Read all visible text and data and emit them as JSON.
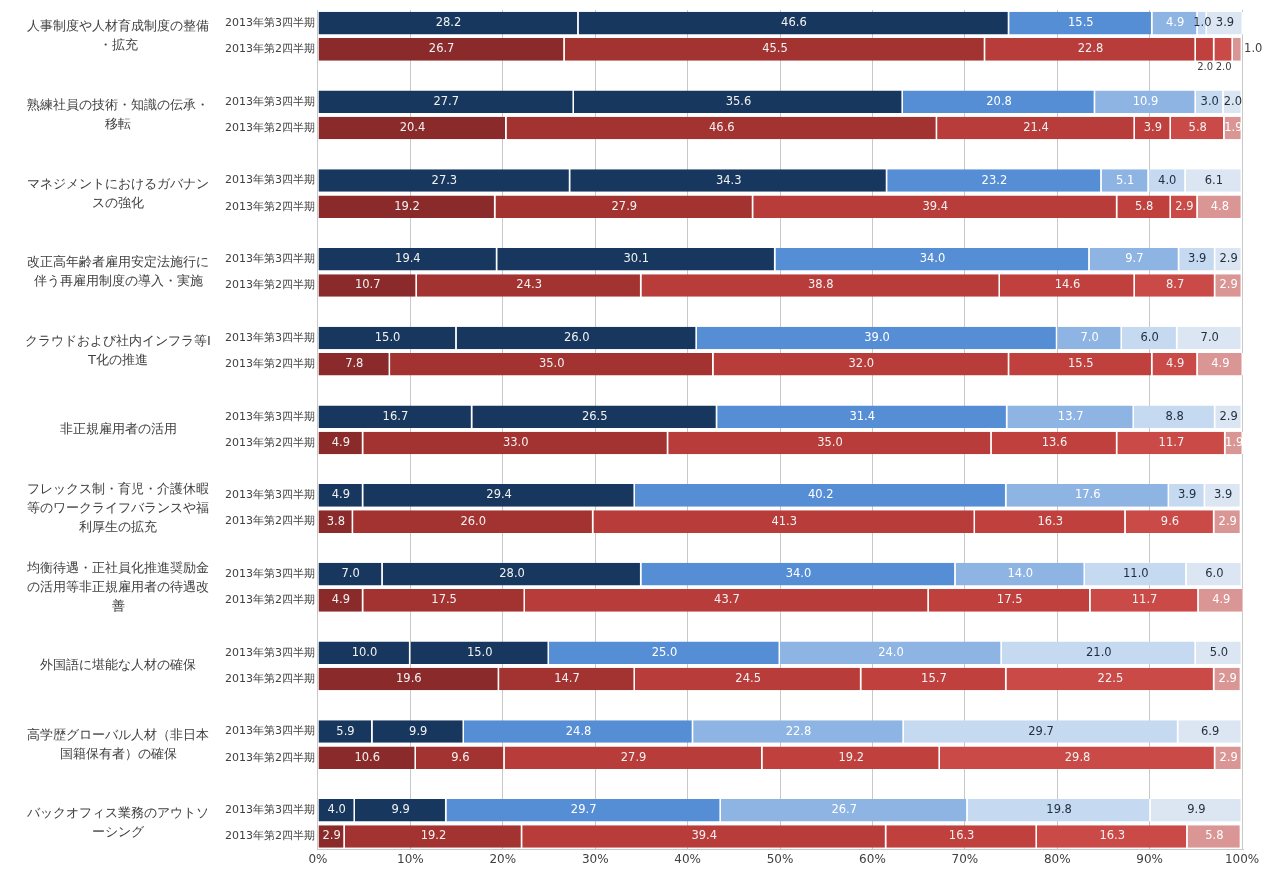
{
  "chart_data": {
    "type": "bar",
    "orientation": "horizontal",
    "stacked": true,
    "grid": "x",
    "legend": false,
    "categories": [
      "2013年第3四半期",
      "2013年第2四半期",
      null,
      "2013年第3四半期",
      "2013年第2四半期",
      null,
      "2013年第3四半期",
      "2013年第2四半期",
      null,
      "2013年第3四半期",
      "2013年第2四半期",
      null,
      "2013年第3四半期",
      "2013年第2四半期",
      null,
      "2013年第3四半期",
      "2013年第2四半期",
      null,
      "2013年第3四半期",
      "2013年第2四半期",
      null,
      "2013年第3四半期",
      "2013年第2四半期",
      null,
      "2013年第3四半期",
      "2013年第2四半期",
      null,
      "2013年第3四半期",
      "2013年第2四半期",
      null,
      "2013年第3四半期",
      "2013年第2四半期"
    ],
    "xlim": [
      0,
      100.1
    ],
    "xticks": [
      {
        "value": 0,
        "label": "0%"
      },
      {
        "value": 10,
        "label": "10%"
      },
      {
        "value": 20,
        "label": "20%"
      },
      {
        "value": 30,
        "label": "30%"
      },
      {
        "value": 40,
        "label": "40%"
      },
      {
        "value": 50,
        "label": "50%"
      },
      {
        "value": 60,
        "label": "60%"
      },
      {
        "value": 70,
        "label": "70%"
      },
      {
        "value": 80,
        "label": "80%"
      },
      {
        "value": 90,
        "label": "90%"
      },
      {
        "value": 100,
        "label": "100%"
      }
    ],
    "annotations": [
      "人事制度や人材育成制度の整備・拡充",
      "熟練社員の技術・知識の伝承・移転",
      "マネジメントにおけるガバナンスの強化",
      "改正高年齢者雇用安定法施行に伴う再雇用制度の導入・実施",
      "クラウドおよび社内インフラ等IT化の推進",
      "非正規雇用者の活用",
      "フレックス制・育児・介護休暇等のワークライフバランスや福利厚生の拡充",
      "均衡待遇・正社員化推進奨励金の活用等非正規雇用者の待遇改善",
      "外国語に堪能な人材の確保",
      "高学歴グローバル人材（非日本国籍保有者）の確保",
      "バックオフィス業務のアウトソーシング"
    ],
    "series": [
      {
        "colors": [
          "#17375e",
          "#8b2a2a",
          null,
          "#17375e",
          "#8b2a2a",
          null,
          "#17375e",
          "#8b2a2a",
          null,
          "#17375e",
          "#8b2a2a",
          null,
          "#17375e",
          "#8b2a2a",
          null,
          "#17375e",
          "#8b2a2a",
          null,
          "#17375e",
          "#8b2a2a",
          null,
          "#17375e",
          "#8b2a2a",
          null,
          "#17375e",
          "#8b2a2a",
          null,
          "#17375e",
          "#8b2a2a",
          null,
          "#17375e",
          "#8b2a2a"
        ],
        "values": [
          28.2,
          26.7,
          null,
          27.7,
          20.4,
          null,
          27.3,
          19.2,
          null,
          19.4,
          10.7,
          null,
          15.0,
          7.8,
          null,
          16.7,
          4.9,
          null,
          4.9,
          3.8,
          null,
          7.0,
          4.9,
          null,
          10.0,
          19.6,
          null,
          5.9,
          10.6,
          null,
          4.0,
          2.9
        ],
        "value_labels": [
          "28.2",
          "26.7",
          null,
          "27.7",
          "20.4",
          null,
          "27.3",
          "19.2",
          null,
          "19.4",
          "10.7",
          null,
          "15.0",
          "7.8",
          null,
          "16.7",
          "4.9",
          null,
          "4.9",
          "3.8",
          null,
          "7.0",
          "4.9",
          null,
          "10.0",
          "19.6",
          null,
          "5.9",
          "10.6",
          null,
          "4.0",
          "2.9"
        ]
      },
      {
        "colors": [
          "#17375e",
          "#a33330",
          null,
          "#17375e",
          "#a33330",
          null,
          "#17375e",
          "#a33330",
          null,
          "#17375e",
          "#a33330",
          null,
          "#17375e",
          "#a33330",
          null,
          "#17375e",
          "#a33330",
          null,
          "#17375e",
          "#a33330",
          null,
          "#17375e",
          "#a33330",
          null,
          "#17375e",
          "#a33330",
          null,
          "#17375e",
          "#a33330",
          null,
          "#17375e",
          "#a33330"
        ],
        "values": [
          46.6,
          45.5,
          null,
          35.6,
          46.6,
          null,
          34.3,
          27.9,
          null,
          30.1,
          24.3,
          null,
          26.0,
          35.0,
          null,
          26.5,
          33.0,
          null,
          29.4,
          26.0,
          null,
          28.0,
          17.5,
          null,
          15.0,
          14.7,
          null,
          9.9,
          9.6,
          null,
          9.9,
          19.2
        ],
        "value_labels": [
          "46.6",
          "45.5",
          null,
          "35.6",
          "46.6",
          null,
          "34.3",
          "27.9",
          null,
          "30.1",
          "24.3",
          null,
          "26.0",
          "35.0",
          null,
          "26.5",
          "33.0",
          null,
          "29.4",
          "26.0",
          null,
          "28.0",
          "17.5",
          null,
          "15.0",
          "14.7",
          null,
          "9.9",
          "9.6",
          null,
          "9.9",
          "19.2"
        ]
      },
      {
        "colors": [
          "#558ed5",
          "#b83c3a",
          null,
          "#558ed5",
          "#b83c3a",
          null,
          "#558ed5",
          "#b83c3a",
          null,
          "#558ed5",
          "#b83c3a",
          null,
          "#558ed5",
          "#b83c3a",
          null,
          "#558ed5",
          "#b83c3a",
          null,
          "#558ed5",
          "#b83c3a",
          null,
          "#558ed5",
          "#b83c3a",
          null,
          "#558ed5",
          "#b83c3a",
          null,
          "#558ed5",
          "#b83c3a",
          null,
          "#558ed5",
          "#b83c3a"
        ],
        "values": [
          15.5,
          22.8,
          null,
          20.8,
          21.4,
          null,
          23.2,
          39.4,
          null,
          34.0,
          38.8,
          null,
          39.0,
          32.0,
          null,
          31.4,
          35.0,
          null,
          40.2,
          41.3,
          null,
          34.0,
          43.7,
          null,
          25.0,
          24.5,
          null,
          24.8,
          27.9,
          null,
          29.7,
          39.4
        ],
        "value_labels": [
          "15.5",
          "22.8",
          null,
          "20.8",
          "21.4",
          null,
          "23.2",
          "39.4",
          null,
          "34.0",
          "38.8",
          null,
          "39.0",
          "32.0",
          null,
          "31.4",
          "35.0",
          null,
          "40.2",
          "41.3",
          null,
          "34.0",
          "43.7",
          null,
          "25.0",
          "24.5",
          null,
          "24.8",
          "27.9",
          null,
          "29.7",
          "39.4"
        ]
      },
      {
        "colors": [
          "#8db4e2",
          "#c0403e",
          null,
          "#8db4e2",
          "#c0403e",
          null,
          "#8db4e2",
          "#c0403e",
          null,
          "#8db4e2",
          "#c0403e",
          null,
          "#8db4e2",
          "#c0403e",
          null,
          "#8db4e2",
          "#c0403e",
          null,
          "#8db4e2",
          "#c0403e",
          null,
          "#8db4e2",
          "#c0403e",
          null,
          "#8db4e2",
          "#c0403e",
          null,
          "#8db4e2",
          "#c0403e",
          null,
          "#8db4e2",
          "#c0403e"
        ],
        "values": [
          4.9,
          2.0,
          null,
          10.9,
          3.9,
          null,
          5.1,
          5.8,
          null,
          9.7,
          14.6,
          null,
          7.0,
          15.5,
          null,
          13.7,
          13.6,
          null,
          17.6,
          16.3,
          null,
          14.0,
          17.5,
          null,
          24.0,
          15.7,
          null,
          22.8,
          19.2,
          null,
          26.7,
          16.3
        ],
        "value_labels": [
          "4.9",
          "2.0",
          null,
          "10.9",
          "3.9",
          null,
          "5.1",
          "5.8",
          null,
          "9.7",
          "14.6",
          null,
          "7.0",
          "15.5",
          null,
          "13.7",
          "13.6",
          null,
          "17.6",
          "16.3",
          null,
          "14.0",
          "17.5",
          null,
          "24.0",
          "15.7",
          null,
          "22.8",
          "19.2",
          null,
          "26.7",
          "16.3"
        ]
      },
      {
        "colors": [
          "#c5d9f1",
          "#c94a47",
          null,
          "#c5d9f1",
          "#c94a47",
          null,
          "#c5d9f1",
          "#c94a47",
          null,
          "#c5d9f1",
          "#c94a47",
          null,
          "#c5d9f1",
          "#c94a47",
          null,
          "#c5d9f1",
          "#c94a47",
          null,
          "#c5d9f1",
          "#c94a47",
          null,
          "#c5d9f1",
          "#c94a47",
          null,
          "#c5d9f1",
          "#c94a47",
          null,
          "#c5d9f1",
          "#c94a47",
          null,
          "#c5d9f1",
          "#c94a47"
        ],
        "values": [
          1.0,
          2.0,
          null,
          3.0,
          5.8,
          null,
          4.0,
          2.9,
          null,
          3.9,
          8.7,
          null,
          6.0,
          4.9,
          null,
          8.8,
          11.7,
          null,
          3.9,
          9.6,
          null,
          11.0,
          11.7,
          null,
          21.0,
          22.5,
          null,
          29.7,
          29.8,
          null,
          19.8,
          16.3
        ],
        "value_labels": [
          "1.0",
          "2.0",
          null,
          "3.0",
          "5.8",
          null,
          "4.0",
          "2.9",
          null,
          "3.9",
          "8.7",
          null,
          "6.0",
          "4.9",
          null,
          "8.8",
          "11.7",
          null,
          "3.9",
          "9.6",
          null,
          "11.0",
          "11.7",
          null,
          "21.0",
          "22.5",
          null,
          "29.7",
          "29.8",
          null,
          "19.8",
          "16.3"
        ]
      },
      {
        "colors": [
          "#dce6f2",
          "#d99694",
          null,
          "#dce6f2",
          "#d99694",
          null,
          "#dce6f2",
          "#d99694",
          null,
          "#dce6f2",
          "#d99694",
          null,
          "#dce6f2",
          "#d99694",
          null,
          "#dce6f2",
          "#d99694",
          null,
          "#dce6f2",
          "#d99694",
          null,
          "#dce6f2",
          "#d99694",
          null,
          "#dce6f2",
          "#d99694",
          null,
          "#dce6f2",
          "#d99694",
          null,
          "#dce6f2",
          "#d99694"
        ],
        "values": [
          3.9,
          1.0,
          null,
          2.0,
          1.9,
          null,
          6.1,
          4.8,
          null,
          2.9,
          2.9,
          null,
          7.0,
          4.9,
          null,
          2.9,
          1.9,
          null,
          3.9,
          2.9,
          null,
          6.0,
          4.9,
          null,
          5.0,
          2.9,
          null,
          6.9,
          2.9,
          null,
          9.9,
          5.8
        ],
        "value_labels": [
          "3.9",
          "1.0",
          null,
          "2.0",
          "1.9",
          null,
          "6.1",
          "4.8",
          null,
          "2.9",
          "2.9",
          null,
          "7.0",
          "4.9",
          null,
          "2.9",
          "1.9",
          null,
          "3.9",
          "2.9",
          null,
          "6.0",
          "4.9",
          null,
          "5.0",
          "2.9",
          null,
          "6.9",
          "2.9",
          null,
          "9.9",
          "5.8"
        ]
      }
    ]
  }
}
